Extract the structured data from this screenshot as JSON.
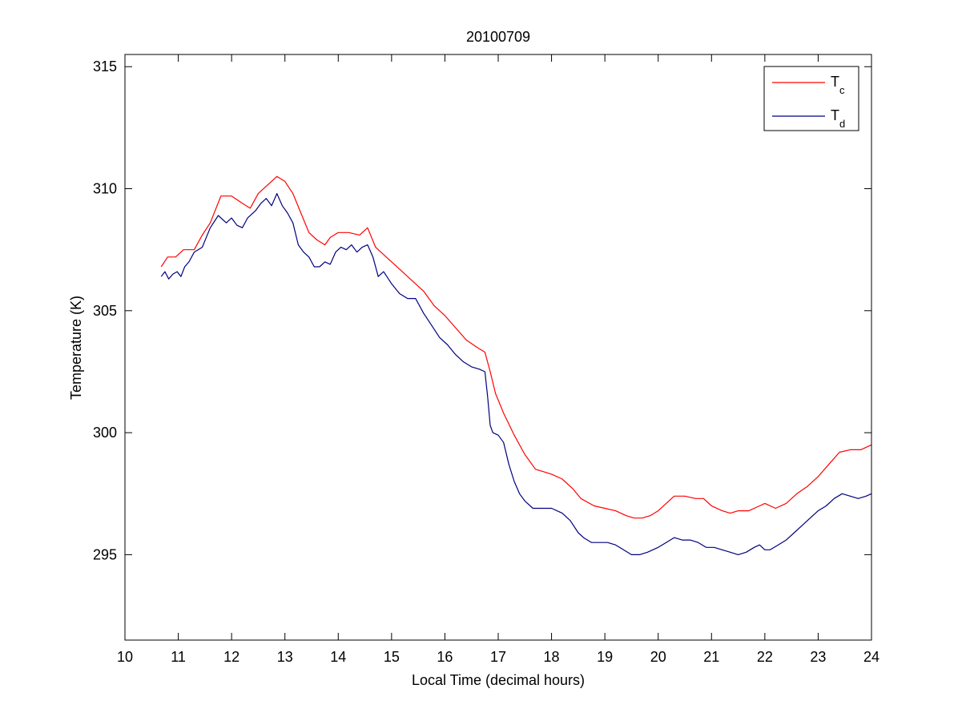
{
  "chart_data": {
    "type": "line",
    "title": "20100709",
    "xlabel": "Local Time (decimal hours)",
    "ylabel": "Temperature (K)",
    "xlim": [
      10,
      24
    ],
    "ylim": [
      291.5,
      315.5
    ],
    "xticks": [
      "10",
      "11",
      "12",
      "13",
      "14",
      "15",
      "16",
      "17",
      "18",
      "19",
      "20",
      "21",
      "22",
      "23",
      "24"
    ],
    "yticks": [
      "295",
      "300",
      "305",
      "310",
      "315"
    ],
    "grid": false,
    "legend": {
      "placement": "top-right"
    },
    "series": [
      {
        "name": "T",
        "subscript": "c",
        "color": "#ff0000",
        "x": [
          10.68,
          10.8,
          10.95,
          11.1,
          11.3,
          11.45,
          11.6,
          11.8,
          12.0,
          12.2,
          12.35,
          12.5,
          12.7,
          12.85,
          13.0,
          13.15,
          13.3,
          13.45,
          13.6,
          13.75,
          13.85,
          14.0,
          14.2,
          14.4,
          14.55,
          14.7,
          14.85,
          15.0,
          15.2,
          15.4,
          15.6,
          15.8,
          16.0,
          16.2,
          16.4,
          16.6,
          16.75,
          16.85,
          16.95,
          17.1,
          17.3,
          17.5,
          17.7,
          17.85,
          18.0,
          18.2,
          18.4,
          18.55,
          18.8,
          19.0,
          19.2,
          19.4,
          19.55,
          19.7,
          19.85,
          20.0,
          20.15,
          20.3,
          20.5,
          20.7,
          20.85,
          21.0,
          21.2,
          21.35,
          21.5,
          21.7,
          21.9,
          22.0,
          22.2,
          22.4,
          22.6,
          22.8,
          23.0,
          23.2,
          23.4,
          23.6,
          23.8,
          24.0
        ],
        "y": [
          306.8,
          307.2,
          307.2,
          307.5,
          307.5,
          308.1,
          308.6,
          309.7,
          309.7,
          309.4,
          309.2,
          309.8,
          310.2,
          310.5,
          310.3,
          309.8,
          309.0,
          308.2,
          307.9,
          307.7,
          308.0,
          308.2,
          308.2,
          308.1,
          308.4,
          307.6,
          307.3,
          307.0,
          306.6,
          306.2,
          305.8,
          305.2,
          304.8,
          304.3,
          303.8,
          303.5,
          303.3,
          302.5,
          301.6,
          300.8,
          299.9,
          299.1,
          298.5,
          298.4,
          298.3,
          298.1,
          297.7,
          297.3,
          297.0,
          296.9,
          296.8,
          296.6,
          296.5,
          296.5,
          296.6,
          296.8,
          297.1,
          297.4,
          297.4,
          297.3,
          297.3,
          297.0,
          296.8,
          296.7,
          296.8,
          296.8,
          297.0,
          297.1,
          296.9,
          297.1,
          297.5,
          297.8,
          298.2,
          298.7,
          299.2,
          299.3,
          299.3,
          299.5
        ]
      },
      {
        "name": "T",
        "subscript": "d",
        "color": "#000080",
        "x": [
          10.68,
          10.75,
          10.82,
          10.9,
          10.98,
          11.05,
          11.12,
          11.2,
          11.3,
          11.45,
          11.6,
          11.75,
          11.9,
          12.0,
          12.1,
          12.2,
          12.3,
          12.45,
          12.55,
          12.65,
          12.75,
          12.85,
          12.95,
          13.05,
          13.15,
          13.25,
          13.35,
          13.45,
          13.55,
          13.65,
          13.75,
          13.85,
          13.95,
          14.05,
          14.15,
          14.25,
          14.35,
          14.45,
          14.55,
          14.65,
          14.75,
          14.85,
          15.0,
          15.15,
          15.3,
          15.45,
          15.6,
          15.75,
          15.9,
          16.05,
          16.2,
          16.35,
          16.5,
          16.65,
          16.75,
          16.8,
          16.85,
          16.9,
          17.0,
          17.1,
          17.2,
          17.3,
          17.4,
          17.5,
          17.65,
          17.8,
          18.0,
          18.2,
          18.35,
          18.5,
          18.6,
          18.75,
          18.9,
          19.05,
          19.2,
          19.35,
          19.5,
          19.65,
          19.8,
          20.0,
          20.15,
          20.3,
          20.45,
          20.6,
          20.75,
          20.9,
          21.05,
          21.2,
          21.35,
          21.5,
          21.65,
          21.8,
          21.9,
          22.0,
          22.1,
          22.25,
          22.4,
          22.55,
          22.7,
          22.85,
          23.0,
          23.15,
          23.3,
          23.45,
          23.6,
          23.75,
          23.9,
          24.0
        ],
        "y": [
          306.4,
          306.6,
          306.3,
          306.5,
          306.6,
          306.4,
          306.8,
          307.0,
          307.4,
          307.6,
          308.4,
          308.9,
          308.6,
          308.8,
          308.5,
          308.4,
          308.8,
          309.1,
          309.4,
          309.6,
          309.3,
          309.8,
          309.3,
          309.0,
          308.6,
          307.7,
          307.4,
          307.2,
          306.8,
          306.8,
          307.0,
          306.9,
          307.4,
          307.6,
          307.5,
          307.7,
          307.4,
          307.6,
          307.7,
          307.2,
          306.4,
          306.6,
          306.1,
          305.7,
          305.5,
          305.5,
          304.9,
          304.4,
          303.9,
          303.6,
          303.2,
          302.9,
          302.7,
          302.6,
          302.5,
          301.5,
          300.3,
          300.0,
          299.9,
          299.6,
          298.7,
          298.0,
          297.5,
          297.2,
          296.9,
          296.9,
          296.9,
          296.7,
          296.4,
          295.9,
          295.7,
          295.5,
          295.5,
          295.5,
          295.4,
          295.2,
          295.0,
          295.0,
          295.1,
          295.3,
          295.5,
          295.7,
          295.6,
          295.6,
          295.5,
          295.3,
          295.3,
          295.2,
          295.1,
          295.0,
          295.1,
          295.3,
          295.4,
          295.2,
          295.2,
          295.4,
          295.6,
          295.9,
          296.2,
          296.5,
          296.8,
          297.0,
          297.3,
          297.5,
          297.4,
          297.3,
          297.4,
          297.5
        ]
      }
    ]
  }
}
